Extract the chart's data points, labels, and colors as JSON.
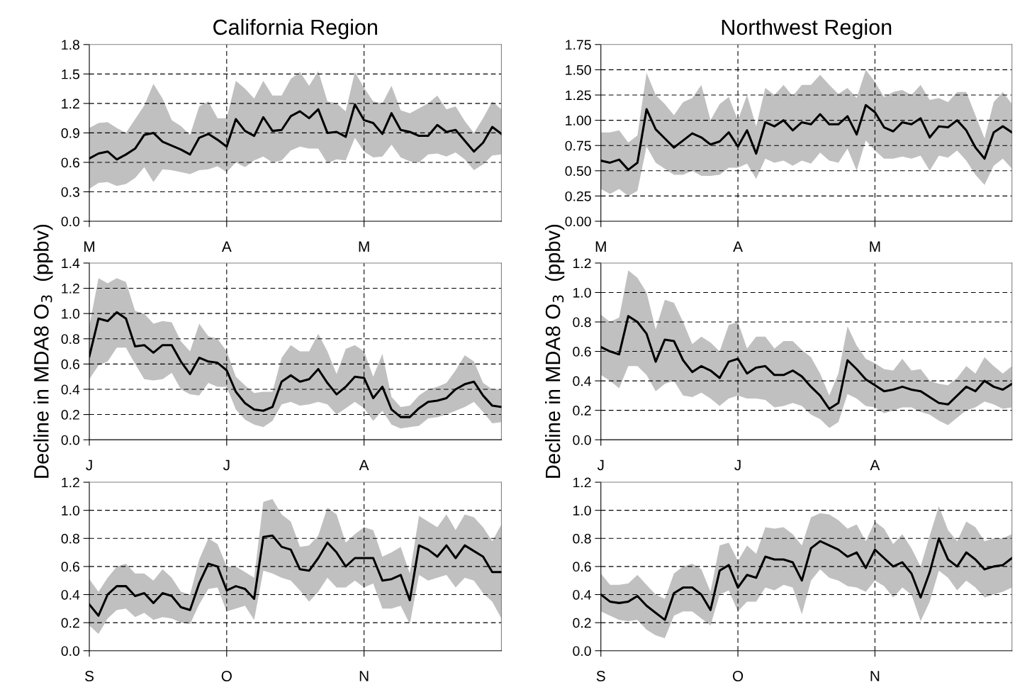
{
  "chart_data": [
    {
      "type": "line",
      "title": "California Region",
      "categories": [
        "M",
        null,
        null,
        null,
        null,
        null,
        null,
        null,
        null,
        null,
        null,
        null,
        null,
        null,
        null,
        "A",
        null,
        null,
        null,
        null,
        null,
        null,
        null,
        null,
        null,
        null,
        null,
        null,
        null,
        null,
        "M",
        null,
        null,
        null,
        null,
        null,
        null,
        null,
        null,
        null,
        null,
        null,
        null,
        null,
        null,
        null
      ],
      "ylim": [
        0,
        1.8
      ],
      "yticks": [
        {
          "value": 0,
          "label": "0.0"
        },
        {
          "value": 0.3,
          "label": "0.3"
        },
        {
          "value": 0.6,
          "label": "0.6"
        },
        {
          "value": 0.9,
          "label": "0.9"
        },
        {
          "value": 1.2,
          "label": "1.2"
        },
        {
          "value": 1.5,
          "label": "1.5"
        },
        {
          "value": 1.8,
          "label": "1.8"
        }
      ],
      "grid": true,
      "series": [
        {
          "color": "#000000",
          "values": [
            0.64,
            0.69,
            0.71,
            0.63,
            0.68,
            0.74,
            0.88,
            0.9,
            0.81,
            0.77,
            0.73,
            0.68,
            0.85,
            0.89,
            0.83,
            0.76,
            1.04,
            0.92,
            0.87,
            1.06,
            0.92,
            0.93,
            1.07,
            1.12,
            1.05,
            1.14,
            0.9,
            0.91,
            0.86,
            1.19,
            1.03,
            1.0,
            0.89,
            1.1,
            0.93,
            0.91,
            0.87,
            0.87,
            0.98,
            0.91,
            0.93,
            0.82,
            0.71,
            0.8,
            0.96,
            0.89
          ],
          "lower": [
            0.33,
            0.39,
            0.4,
            0.36,
            0.38,
            0.44,
            0.55,
            0.4,
            0.53,
            0.52,
            0.5,
            0.48,
            0.52,
            0.53,
            0.56,
            0.5,
            0.6,
            0.55,
            0.62,
            0.66,
            0.6,
            0.62,
            0.72,
            0.76,
            0.74,
            0.74,
            0.59,
            0.63,
            0.62,
            0.85,
            0.71,
            0.65,
            0.66,
            0.78,
            0.65,
            0.61,
            0.6,
            0.68,
            0.69,
            0.66,
            0.7,
            0.63,
            0.52,
            0.58,
            0.67,
            0.68
          ],
          "upper": [
            0.95,
            1.0,
            1.01,
            0.95,
            0.9,
            1.04,
            1.18,
            1.4,
            1.25,
            1.03,
            0.97,
            0.88,
            1.17,
            1.22,
            1.05,
            1.05,
            1.43,
            1.35,
            1.25,
            1.43,
            1.28,
            1.28,
            1.45,
            1.52,
            1.38,
            1.53,
            1.22,
            1.2,
            1.12,
            1.52,
            1.36,
            1.22,
            1.2,
            1.38,
            1.13,
            1.1,
            1.15,
            1.2,
            1.28,
            1.14,
            1.17,
            1.02,
            0.9,
            1.05,
            1.22,
            1.14
          ]
        }
      ]
    },
    {
      "type": "line",
      "title": "Northwest Region",
      "categories": [
        "M",
        null,
        null,
        null,
        null,
        null,
        null,
        null,
        null,
        null,
        null,
        null,
        null,
        null,
        null,
        "A",
        null,
        null,
        null,
        null,
        null,
        null,
        null,
        null,
        null,
        null,
        null,
        null,
        null,
        null,
        "M",
        null,
        null,
        null,
        null,
        null,
        null,
        null,
        null,
        null,
        null,
        null,
        null,
        null,
        null,
        null
      ],
      "ylim": [
        0,
        1.75
      ],
      "yticks": [
        {
          "value": 0,
          "label": "0.00"
        },
        {
          "value": 0.25,
          "label": "0.25"
        },
        {
          "value": 0.5,
          "label": "0.50"
        },
        {
          "value": 0.75,
          "label": "0.75"
        },
        {
          "value": 1.0,
          "label": "1.00"
        },
        {
          "value": 1.25,
          "label": "1.25"
        },
        {
          "value": 1.5,
          "label": "1.50"
        },
        {
          "value": 1.75,
          "label": "1.75"
        }
      ],
      "grid": true,
      "series": [
        {
          "color": "#000000",
          "values": [
            0.6,
            0.58,
            0.61,
            0.51,
            0.58,
            1.11,
            0.91,
            0.82,
            0.73,
            0.8,
            0.87,
            0.83,
            0.76,
            0.79,
            0.88,
            0.74,
            0.9,
            0.67,
            0.98,
            0.94,
            1.0,
            0.9,
            0.98,
            0.96,
            1.06,
            0.96,
            0.96,
            1.04,
            0.86,
            1.15,
            1.08,
            0.93,
            0.89,
            0.98,
            0.96,
            1.02,
            0.83,
            0.94,
            0.93,
            1.0,
            0.9,
            0.73,
            0.62,
            0.88,
            0.94,
            0.88
          ],
          "lower": [
            0.32,
            0.27,
            0.32,
            0.25,
            0.3,
            0.74,
            0.58,
            0.52,
            0.46,
            0.46,
            0.5,
            0.45,
            0.45,
            0.46,
            0.53,
            0.53,
            0.57,
            0.42,
            0.62,
            0.58,
            0.6,
            0.55,
            0.6,
            0.57,
            0.68,
            0.6,
            0.58,
            0.72,
            0.5,
            0.8,
            0.7,
            0.62,
            0.62,
            0.64,
            0.62,
            0.65,
            0.5,
            0.65,
            0.63,
            0.7,
            0.6,
            0.46,
            0.36,
            0.55,
            0.62,
            0.52
          ],
          "upper": [
            0.88,
            0.88,
            0.9,
            0.78,
            0.85,
            1.47,
            1.25,
            1.16,
            1.05,
            1.18,
            1.22,
            1.35,
            1.0,
            1.16,
            1.23,
            1.0,
            1.25,
            0.94,
            1.32,
            1.25,
            1.35,
            1.24,
            1.35,
            1.35,
            1.45,
            1.35,
            1.26,
            1.32,
            1.22,
            1.5,
            1.38,
            1.23,
            1.28,
            1.3,
            1.25,
            1.35,
            1.2,
            1.22,
            1.18,
            1.28,
            1.28,
            1.05,
            0.82,
            1.18,
            1.28,
            1.16
          ]
        }
      ]
    },
    {
      "type": "line",
      "ylabel": "Decline in MDA8 O$_{3}$  (ppbv)",
      "categories": [
        "J",
        null,
        null,
        null,
        null,
        null,
        null,
        null,
        null,
        null,
        null,
        null,
        null,
        null,
        null,
        "J",
        null,
        null,
        null,
        null,
        null,
        null,
        null,
        null,
        null,
        null,
        null,
        null,
        null,
        null,
        "A",
        null,
        null,
        null,
        null,
        null,
        null,
        null,
        null,
        null,
        null,
        null,
        null,
        null,
        null,
        null
      ],
      "ylim": [
        0,
        1.4
      ],
      "yticks": [
        {
          "value": 0,
          "label": "0.0"
        },
        {
          "value": 0.2,
          "label": "0.2"
        },
        {
          "value": 0.4,
          "label": "0.4"
        },
        {
          "value": 0.6,
          "label": "0.6"
        },
        {
          "value": 0.8,
          "label": "0.8"
        },
        {
          "value": 1.0,
          "label": "1.0"
        },
        {
          "value": 1.2,
          "label": "1.2"
        },
        {
          "value": 1.4,
          "label": "1.4"
        }
      ],
      "grid": true,
      "series": [
        {
          "color": "#000000",
          "values": [
            0.66,
            0.96,
            0.94,
            1.01,
            0.96,
            0.74,
            0.75,
            0.69,
            0.75,
            0.75,
            0.62,
            0.52,
            0.65,
            0.62,
            0.61,
            0.55,
            0.38,
            0.29,
            0.24,
            0.23,
            0.26,
            0.46,
            0.51,
            0.46,
            0.48,
            0.56,
            0.45,
            0.36,
            0.42,
            0.5,
            0.49,
            0.33,
            0.42,
            0.24,
            0.18,
            0.18,
            0.25,
            0.3,
            0.31,
            0.33,
            0.4,
            0.44,
            0.46,
            0.35,
            0.27,
            0.26
          ],
          "lower": [
            0.48,
            0.59,
            0.62,
            0.73,
            0.73,
            0.6,
            0.48,
            0.47,
            0.48,
            0.53,
            0.4,
            0.36,
            0.35,
            0.45,
            0.42,
            0.42,
            0.24,
            0.16,
            0.12,
            0.1,
            0.15,
            0.28,
            0.3,
            0.27,
            0.28,
            0.3,
            0.28,
            0.2,
            0.25,
            0.3,
            0.25,
            0.15,
            0.23,
            0.12,
            0.09,
            0.1,
            0.11,
            0.17,
            0.18,
            0.2,
            0.23,
            0.26,
            0.3,
            0.22,
            0.13,
            0.14
          ],
          "upper": [
            0.9,
            1.28,
            1.24,
            1.28,
            1.25,
            1.02,
            1.0,
            0.92,
            0.94,
            0.93,
            0.78,
            0.7,
            0.92,
            0.82,
            0.8,
            0.7,
            0.5,
            0.43,
            0.37,
            0.38,
            0.38,
            0.65,
            0.75,
            0.7,
            0.7,
            0.84,
            0.7,
            0.52,
            0.72,
            0.75,
            0.7,
            0.5,
            0.68,
            0.34,
            0.26,
            0.27,
            0.35,
            0.4,
            0.42,
            0.45,
            0.55,
            0.67,
            0.62,
            0.45,
            0.4,
            0.4
          ]
        }
      ]
    },
    {
      "type": "line",
      "ylabel": "Decline in MDA8 O$_{3}$  (ppbv)",
      "categories": [
        "J",
        null,
        null,
        null,
        null,
        null,
        null,
        null,
        null,
        null,
        null,
        null,
        null,
        null,
        null,
        "J",
        null,
        null,
        null,
        null,
        null,
        null,
        null,
        null,
        null,
        null,
        null,
        null,
        null,
        null,
        "A",
        null,
        null,
        null,
        null,
        null,
        null,
        null,
        null,
        null,
        null,
        null,
        null,
        null,
        null,
        null
      ],
      "ylim": [
        0,
        1.2
      ],
      "yticks": [
        {
          "value": 0,
          "label": "0.0"
        },
        {
          "value": 0.2,
          "label": "0.2"
        },
        {
          "value": 0.4,
          "label": "0.4"
        },
        {
          "value": 0.6,
          "label": "0.6"
        },
        {
          "value": 0.8,
          "label": "0.8"
        },
        {
          "value": 1.0,
          "label": "1.0"
        },
        {
          "value": 1.2,
          "label": "1.2"
        }
      ],
      "grid": true,
      "series": [
        {
          "color": "#000000",
          "values": [
            0.63,
            0.6,
            0.58,
            0.84,
            0.8,
            0.72,
            0.53,
            0.68,
            0.67,
            0.54,
            0.46,
            0.5,
            0.47,
            0.42,
            0.53,
            0.55,
            0.45,
            0.49,
            0.5,
            0.44,
            0.44,
            0.47,
            0.43,
            0.36,
            0.3,
            0.21,
            0.25,
            0.54,
            0.48,
            0.41,
            0.37,
            0.33,
            0.34,
            0.36,
            0.34,
            0.33,
            0.29,
            0.25,
            0.24,
            0.3,
            0.36,
            0.33,
            0.4,
            0.36,
            0.34,
            0.38
          ],
          "lower": [
            0.44,
            0.4,
            0.35,
            0.5,
            0.5,
            0.44,
            0.33,
            0.38,
            0.4,
            0.3,
            0.29,
            0.32,
            0.28,
            0.23,
            0.28,
            0.3,
            0.28,
            0.28,
            0.27,
            0.22,
            0.23,
            0.25,
            0.23,
            0.17,
            0.14,
            0.08,
            0.12,
            0.31,
            0.28,
            0.23,
            0.22,
            0.18,
            0.2,
            0.22,
            0.22,
            0.19,
            0.17,
            0.13,
            0.1,
            0.15,
            0.2,
            0.22,
            0.26,
            0.24,
            0.21,
            0.22
          ],
          "upper": [
            0.85,
            0.8,
            0.83,
            1.15,
            1.1,
            1.0,
            0.75,
            0.95,
            0.93,
            0.8,
            0.65,
            0.7,
            0.66,
            0.6,
            0.78,
            0.8,
            0.62,
            0.7,
            0.7,
            0.62,
            0.67,
            0.67,
            0.61,
            0.56,
            0.45,
            0.3,
            0.45,
            0.77,
            0.64,
            0.55,
            0.52,
            0.48,
            0.47,
            0.55,
            0.47,
            0.48,
            0.4,
            0.38,
            0.37,
            0.42,
            0.5,
            0.45,
            0.56,
            0.5,
            0.45,
            0.5
          ]
        }
      ]
    },
    {
      "type": "line",
      "categories": [
        "S",
        null,
        null,
        null,
        null,
        null,
        null,
        null,
        null,
        null,
        null,
        null,
        null,
        null,
        null,
        "O",
        null,
        null,
        null,
        null,
        null,
        null,
        null,
        null,
        null,
        null,
        null,
        null,
        null,
        null,
        "N",
        null,
        null,
        null,
        null,
        null,
        null,
        null,
        null,
        null,
        null,
        null,
        null,
        null,
        null,
        null
      ],
      "ylim": [
        0,
        1.2
      ],
      "yticks": [
        {
          "value": 0,
          "label": "0.0"
        },
        {
          "value": 0.2,
          "label": "0.2"
        },
        {
          "value": 0.4,
          "label": "0.4"
        },
        {
          "value": 0.6,
          "label": "0.6"
        },
        {
          "value": 0.8,
          "label": "0.8"
        },
        {
          "value": 1.0,
          "label": "1.0"
        },
        {
          "value": 1.2,
          "label": "1.2"
        }
      ],
      "grid": true,
      "series": [
        {
          "color": "#000000",
          "values": [
            0.33,
            0.25,
            0.4,
            0.46,
            0.46,
            0.39,
            0.41,
            0.34,
            0.41,
            0.39,
            0.31,
            0.29,
            0.48,
            0.62,
            0.6,
            0.43,
            0.46,
            0.44,
            0.37,
            0.81,
            0.82,
            0.74,
            0.72,
            0.58,
            0.57,
            0.66,
            0.77,
            0.7,
            0.6,
            0.66,
            0.66,
            0.66,
            0.5,
            0.51,
            0.54,
            0.36,
            0.75,
            0.72,
            0.67,
            0.75,
            0.66,
            0.75,
            0.71,
            0.67,
            0.56,
            0.56
          ],
          "lower": [
            0.18,
            0.12,
            0.23,
            0.29,
            0.3,
            0.24,
            0.27,
            0.22,
            0.24,
            0.23,
            0.2,
            0.19,
            0.33,
            0.44,
            0.45,
            0.28,
            0.3,
            0.32,
            0.22,
            0.57,
            0.55,
            0.52,
            0.5,
            0.43,
            0.35,
            0.42,
            0.52,
            0.45,
            0.45,
            0.5,
            0.45,
            0.48,
            0.3,
            0.3,
            0.32,
            0.19,
            0.54,
            0.5,
            0.52,
            0.54,
            0.45,
            0.52,
            0.5,
            0.41,
            0.35,
            0.23
          ],
          "upper": [
            0.51,
            0.42,
            0.52,
            0.6,
            0.62,
            0.55,
            0.55,
            0.5,
            0.58,
            0.52,
            0.42,
            0.4,
            0.65,
            0.8,
            0.76,
            0.6,
            0.6,
            0.56,
            0.52,
            1.06,
            1.08,
            0.97,
            0.92,
            0.74,
            0.75,
            0.82,
            1.02,
            0.97,
            0.77,
            0.83,
            0.88,
            0.86,
            0.67,
            0.7,
            0.74,
            0.55,
            0.96,
            0.92,
            0.88,
            0.97,
            0.86,
            0.97,
            0.95,
            0.88,
            0.78,
            0.9
          ]
        }
      ]
    },
    {
      "type": "line",
      "categories": [
        "S",
        null,
        null,
        null,
        null,
        null,
        null,
        null,
        null,
        null,
        null,
        null,
        null,
        null,
        null,
        "O",
        null,
        null,
        null,
        null,
        null,
        null,
        null,
        null,
        null,
        null,
        null,
        null,
        null,
        null,
        "N",
        null,
        null,
        null,
        null,
        null,
        null,
        null,
        null,
        null,
        null,
        null,
        null,
        null,
        null,
        null
      ],
      "ylim": [
        0,
        1.2
      ],
      "yticks": [
        {
          "value": 0,
          "label": "0.0"
        },
        {
          "value": 0.2,
          "label": "0.2"
        },
        {
          "value": 0.4,
          "label": "0.4"
        },
        {
          "value": 0.6,
          "label": "0.6"
        },
        {
          "value": 0.8,
          "label": "0.8"
        },
        {
          "value": 1.0,
          "label": "1.0"
        },
        {
          "value": 1.2,
          "label": "1.2"
        }
      ],
      "grid": true,
      "series": [
        {
          "color": "#000000",
          "values": [
            0.4,
            0.35,
            0.34,
            0.35,
            0.39,
            0.32,
            0.27,
            0.22,
            0.41,
            0.45,
            0.45,
            0.4,
            0.29,
            0.57,
            0.61,
            0.45,
            0.54,
            0.52,
            0.67,
            0.65,
            0.65,
            0.63,
            0.5,
            0.73,
            0.78,
            0.75,
            0.72,
            0.67,
            0.7,
            0.59,
            0.72,
            0.66,
            0.6,
            0.63,
            0.55,
            0.38,
            0.56,
            0.8,
            0.65,
            0.6,
            0.7,
            0.65,
            0.58,
            0.6,
            0.61,
            0.66
          ],
          "lower": [
            0.28,
            0.25,
            0.22,
            0.21,
            0.22,
            0.15,
            0.11,
            0.09,
            0.25,
            0.28,
            0.28,
            0.23,
            0.18,
            0.4,
            0.43,
            0.28,
            0.35,
            0.35,
            0.45,
            0.43,
            0.47,
            0.45,
            0.26,
            0.5,
            0.58,
            0.52,
            0.5,
            0.46,
            0.45,
            0.42,
            0.5,
            0.46,
            0.38,
            0.45,
            0.4,
            0.21,
            0.35,
            0.57,
            0.52,
            0.43,
            0.5,
            0.45,
            0.38,
            0.4,
            0.42,
            0.45
          ],
          "upper": [
            0.55,
            0.47,
            0.47,
            0.48,
            0.54,
            0.47,
            0.4,
            0.37,
            0.55,
            0.6,
            0.62,
            0.58,
            0.42,
            0.75,
            0.77,
            0.64,
            0.75,
            0.69,
            0.88,
            0.87,
            0.88,
            0.83,
            0.75,
            0.95,
            0.98,
            0.97,
            0.93,
            0.87,
            0.9,
            0.78,
            0.92,
            0.87,
            0.76,
            0.83,
            0.73,
            0.6,
            0.82,
            1.03,
            0.86,
            0.78,
            0.92,
            0.88,
            0.78,
            0.8,
            0.8,
            0.83
          ]
        }
      ]
    }
  ]
}
